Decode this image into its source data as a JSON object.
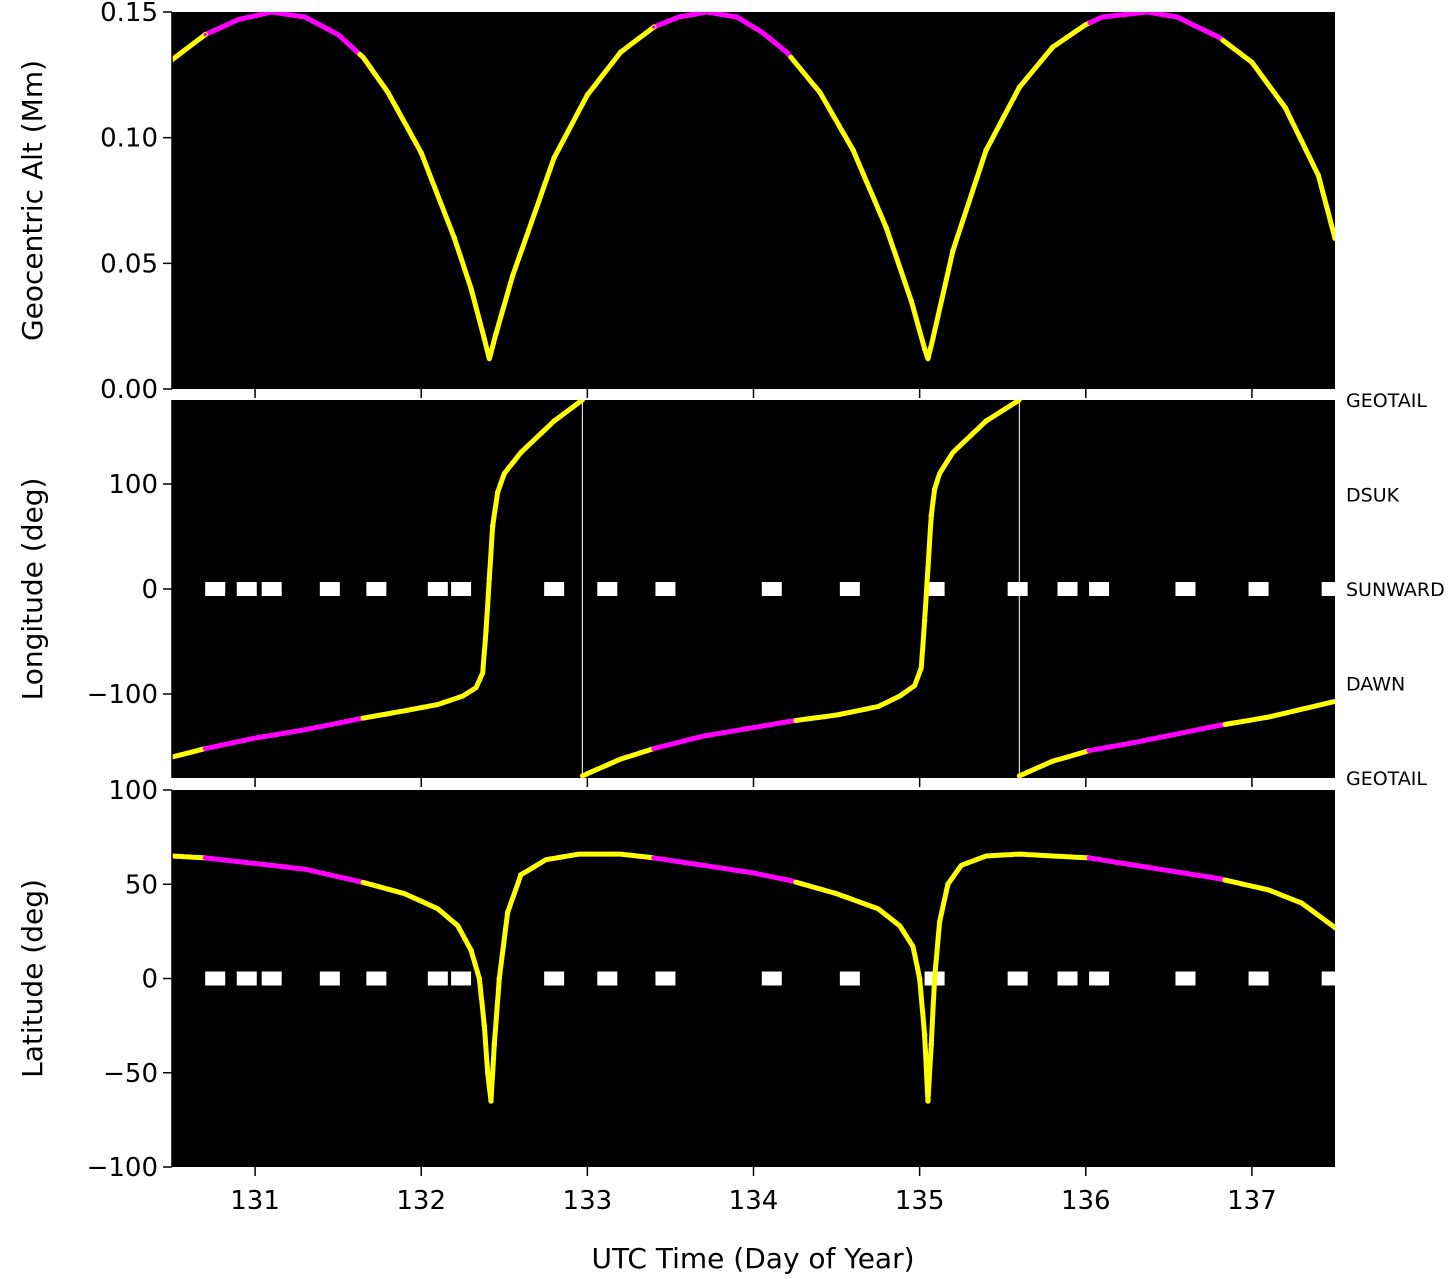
{
  "colors": {
    "background": "#000000",
    "trajectory": "#ffff00",
    "highlight": "#ff00ff",
    "markers": "#ffffff",
    "connector": "#ffffff"
  },
  "chart_data": [
    {
      "type": "line",
      "ylabel": "Geocentric Alt (Mm)",
      "xlim": [
        130.5,
        137.5
      ],
      "ylim": [
        0.0,
        0.15
      ],
      "yticks": [
        "0.00",
        "0.05",
        "0.10",
        "0.15"
      ],
      "ytick_values": [
        0.0,
        0.05,
        0.1,
        0.15
      ],
      "series": [
        {
          "x": [
            130.5,
            130.7,
            130.9,
            131.1,
            131.3,
            131.5,
            131.65,
            131.8,
            132.0,
            132.2,
            132.3,
            132.38,
            132.41,
            132.45,
            132.55,
            132.8,
            133.0,
            133.2,
            133.4,
            133.55,
            133.72,
            133.9,
            134.05,
            134.2,
            134.4,
            134.6,
            134.8,
            134.95,
            135.03,
            135.05,
            135.08,
            135.2,
            135.4,
            135.6,
            135.8,
            136.0,
            136.1,
            136.37,
            136.55,
            136.8,
            137.0,
            137.2,
            137.4,
            137.5
          ],
          "y": [
            0.131,
            0.141,
            0.147,
            0.15,
            0.148,
            0.141,
            0.132,
            0.118,
            0.094,
            0.06,
            0.04,
            0.02,
            0.012,
            0.022,
            0.045,
            0.092,
            0.117,
            0.134,
            0.144,
            0.148,
            0.15,
            0.148,
            0.142,
            0.134,
            0.118,
            0.095,
            0.064,
            0.035,
            0.016,
            0.012,
            0.02,
            0.055,
            0.095,
            0.12,
            0.136,
            0.145,
            0.148,
            0.15,
            0.148,
            0.14,
            0.13,
            0.112,
            0.085,
            0.06
          ]
        }
      ],
      "highlight_intervals": [
        [
          130.68,
          131.63
        ],
        [
          133.4,
          134.22
        ],
        [
          136.02,
          136.8
        ]
      ]
    },
    {
      "type": "line",
      "ylabel": "Longitude (deg)",
      "xlim": [
        130.5,
        137.5
      ],
      "ylim": [
        -180,
        180
      ],
      "yticks": [
        "−100",
        "0",
        "100"
      ],
      "ytick_values": [
        -100,
        0,
        100
      ],
      "series": [
        {
          "x": [
            130.5,
            130.7,
            131.0,
            131.3,
            131.65,
            131.9,
            132.1,
            132.25,
            132.33,
            132.37,
            132.39,
            132.41,
            132.43,
            132.46,
            132.5,
            132.6,
            132.8,
            132.97
          ],
          "y": [
            -160,
            -152,
            -142,
            -134,
            -123,
            -116,
            -110,
            -102,
            -94,
            -80,
            -40,
            10,
            60,
            92,
            110,
            130,
            160,
            180
          ]
        },
        {
          "x": [
            132.97,
            133.2,
            133.4,
            133.7,
            134.0,
            134.22,
            134.5,
            134.75,
            134.88,
            134.97,
            135.01,
            135.03,
            135.05,
            135.07,
            135.09,
            135.12,
            135.2,
            135.4,
            135.6
          ],
          "y": [
            -178,
            -162,
            -152,
            -140,
            -132,
            -126,
            -120,
            -112,
            -102,
            -92,
            -75,
            -30,
            20,
            70,
            95,
            110,
            130,
            160,
            180
          ]
        },
        {
          "x": [
            135.6,
            135.8,
            136.02,
            136.3,
            136.8,
            137.1,
            137.5
          ],
          "y": [
            -178,
            -164,
            -154,
            -146,
            -130,
            -122,
            -107
          ]
        }
      ],
      "highlight_intervals": [
        [
          130.68,
          131.63
        ],
        [
          133.4,
          134.22
        ],
        [
          136.02,
          136.8
        ]
      ],
      "wrap_lines": [
        132.97,
        135.6
      ],
      "markers_y": 0,
      "markers_x": [
        130.76,
        130.95,
        131.1,
        131.45,
        131.73,
        132.1,
        132.24,
        132.8,
        133.12,
        133.47,
        134.11,
        134.58,
        135.09,
        135.59,
        135.89,
        136.08,
        136.6,
        137.04,
        137.48
      ],
      "region_labels": [
        {
          "text": "GEOTAIL",
          "y": 180
        },
        {
          "text": "DSUK",
          "y": 90
        },
        {
          "text": "SUNWARD",
          "y": 0
        },
        {
          "text": "DAWN",
          "y": -90
        },
        {
          "text": "GEOTAIL",
          "y": -180
        }
      ]
    },
    {
      "type": "line",
      "ylabel": "Latitude (deg)",
      "xlabel": "UTC Time (Day of Year)",
      "xlim": [
        130.5,
        137.5
      ],
      "ylim": [
        -100,
        100
      ],
      "yticks": [
        "−100",
        "−50",
        "0",
        "50",
        "100"
      ],
      "ytick_values": [
        -100,
        -50,
        0,
        50,
        100
      ],
      "xticks": [
        "131",
        "132",
        "133",
        "134",
        "135",
        "136",
        "137"
      ],
      "xtick_values": [
        131,
        132,
        133,
        134,
        135,
        136,
        137
      ],
      "series": [
        {
          "x": [
            130.5,
            130.7,
            131.0,
            131.3,
            131.65,
            131.9,
            132.1,
            132.22,
            132.3,
            132.35,
            132.38,
            132.4,
            132.42,
            132.44,
            132.47,
            132.52,
            132.6,
            132.75,
            132.95,
            133.2,
            133.4,
            133.7,
            134.0,
            134.22,
            134.5,
            134.75,
            134.88,
            134.96,
            135.0,
            135.03,
            135.05,
            135.07,
            135.09,
            135.12,
            135.17,
            135.25,
            135.4,
            135.6,
            135.8,
            136.02,
            136.3,
            136.8,
            137.1,
            137.3,
            137.5
          ],
          "y": [
            65,
            64,
            61,
            58,
            51,
            45,
            37,
            28,
            15,
            0,
            -25,
            -50,
            -65,
            -35,
            0,
            35,
            55,
            63,
            66,
            66,
            64,
            60,
            56,
            52,
            45,
            37,
            28,
            17,
            0,
            -30,
            -65,
            -35,
            0,
            30,
            50,
            60,
            65,
            66,
            65,
            64,
            60,
            53,
            47,
            40,
            27
          ]
        }
      ],
      "highlight_intervals": [
        [
          130.68,
          131.63
        ],
        [
          133.4,
          134.22
        ],
        [
          136.02,
          136.8
        ]
      ],
      "markers_y": 0,
      "markers_x": [
        130.76,
        130.95,
        131.1,
        131.45,
        131.73,
        132.1,
        132.24,
        132.8,
        133.12,
        133.47,
        134.11,
        134.58,
        135.09,
        135.59,
        135.89,
        136.08,
        136.6,
        137.04,
        137.48
      ]
    }
  ]
}
